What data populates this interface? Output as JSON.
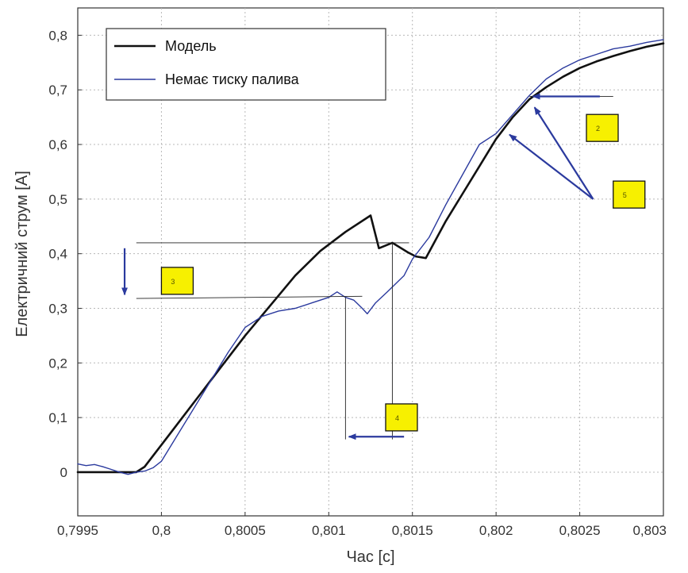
{
  "chart_data": {
    "type": "line",
    "title": "",
    "xlabel": "Час [с]",
    "ylabel": "Електричний струм [A]",
    "xlim": [
      0.7995,
      0.803
    ],
    "ylim": [
      -0.08,
      0.85
    ],
    "grid": true,
    "legend_position": "top-left",
    "x_ticks": [
      0.7995,
      0.8,
      0.8005,
      0.801,
      0.8015,
      0.802,
      0.8025,
      0.803
    ],
    "x_tick_labels": [
      "0,7995",
      "0,8",
      "0,8005",
      "0,801",
      "0,8015",
      "0,802",
      "0,8025",
      "0,803"
    ],
    "y_ticks": [
      0,
      0.1,
      0.2,
      0.3,
      0.4,
      0.5,
      0.6,
      0.7,
      0.8
    ],
    "y_tick_labels": [
      "0",
      "0,1",
      "0,2",
      "0,3",
      "0,4",
      "0,5",
      "0,6",
      "0,7",
      "0,8"
    ],
    "series": [
      {
        "name": "Модель",
        "color": "#111111",
        "x": [
          0.7995,
          0.79975,
          0.79985,
          0.7999,
          0.80005,
          0.8002,
          0.80035,
          0.8005,
          0.80065,
          0.8008,
          0.80095,
          0.8011,
          0.80125,
          0.8013,
          0.80138,
          0.80147,
          0.80152,
          0.80158,
          0.8017,
          0.8018,
          0.8019,
          0.802,
          0.8021,
          0.8022,
          0.8023,
          0.8024,
          0.8025,
          0.8026,
          0.8027,
          0.8028,
          0.8029,
          0.803
        ],
        "values": [
          0.0,
          0.0,
          0.0,
          0.01,
          0.07,
          0.13,
          0.19,
          0.25,
          0.305,
          0.36,
          0.405,
          0.44,
          0.47,
          0.41,
          0.42,
          0.403,
          0.395,
          0.392,
          0.46,
          0.51,
          0.56,
          0.61,
          0.65,
          0.683,
          0.705,
          0.724,
          0.74,
          0.752,
          0.762,
          0.771,
          0.779,
          0.785
        ]
      },
      {
        "name": "Немає тиску палива",
        "color": "#2b3a9e",
        "x": [
          0.7995,
          0.79955,
          0.7996,
          0.79965,
          0.7997,
          0.79975,
          0.7998,
          0.79985,
          0.7999,
          0.79995,
          0.8,
          0.8001,
          0.8002,
          0.8003,
          0.8004,
          0.8005,
          0.8006,
          0.8007,
          0.8008,
          0.8009,
          0.801,
          0.80105,
          0.8011,
          0.80115,
          0.8012,
          0.80123,
          0.80128,
          0.80135,
          0.80145,
          0.8015,
          0.8016,
          0.8017,
          0.8018,
          0.8019,
          0.802,
          0.8021,
          0.8022,
          0.8023,
          0.8024,
          0.8025,
          0.8026,
          0.8027,
          0.8028,
          0.8029,
          0.803
        ],
        "values": [
          0.015,
          0.012,
          0.014,
          0.01,
          0.005,
          0.0,
          -0.004,
          0.0,
          0.002,
          0.008,
          0.02,
          0.07,
          0.12,
          0.17,
          0.22,
          0.265,
          0.285,
          0.295,
          0.3,
          0.31,
          0.32,
          0.33,
          0.32,
          0.315,
          0.3,
          0.29,
          0.31,
          0.33,
          0.36,
          0.39,
          0.43,
          0.49,
          0.545,
          0.6,
          0.62,
          0.655,
          0.69,
          0.72,
          0.74,
          0.755,
          0.765,
          0.775,
          0.78,
          0.787,
          0.792
        ]
      }
    ],
    "annotations": [
      {
        "label": "3",
        "color": "#f7f000"
      },
      {
        "label": "4",
        "color": "#f7f000"
      },
      {
        "label": "2",
        "color": "#f7f000"
      },
      {
        "label": "5",
        "color": "#f7f000"
      }
    ],
    "colors": {
      "grid": "#b8b8b8",
      "arrow": "#2b3a9e",
      "axis_title": "#9a2b3a",
      "marker_fill": "#f7f000",
      "marker_border": "#111111"
    }
  }
}
